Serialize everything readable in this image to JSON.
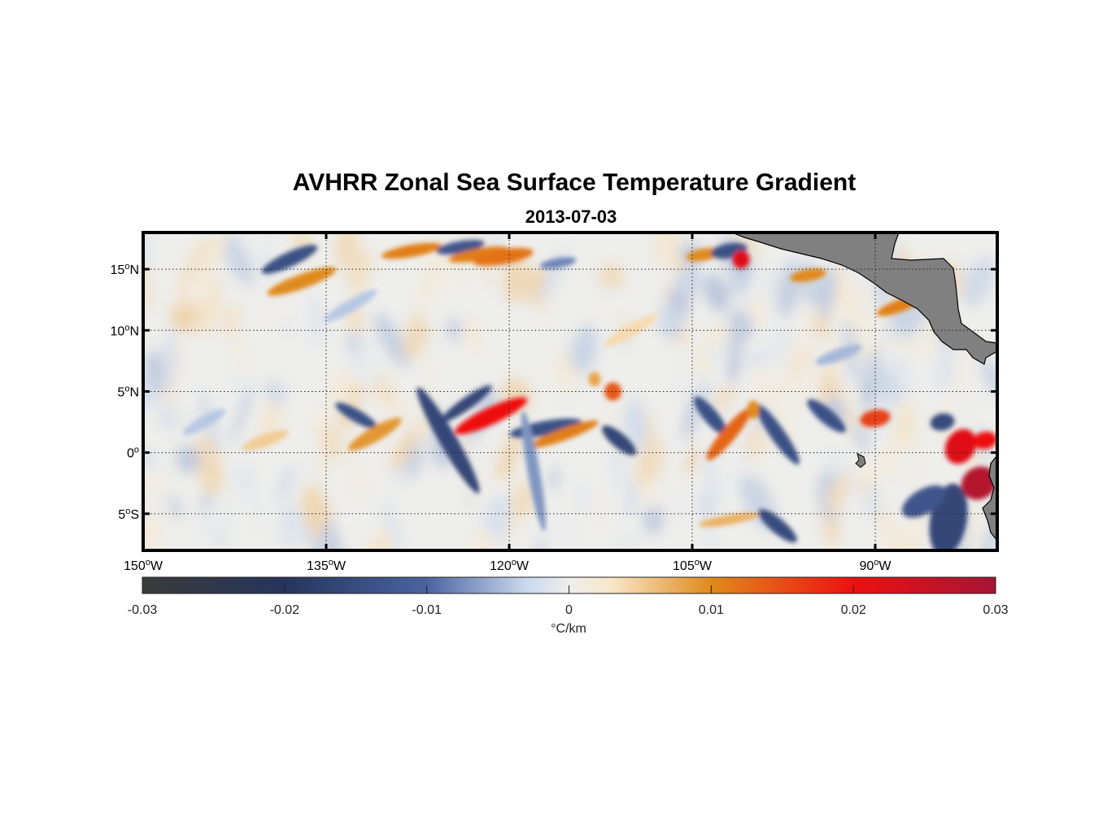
{
  "title": "AVHRR Zonal Sea Surface Temperature Gradient",
  "subtitle": "2013-07-03",
  "map": {
    "extent": {
      "lon_min": -150,
      "lon_max": -80,
      "lat_min": -8,
      "lat_max": 18
    },
    "land_color": "#808080",
    "grid": "dotted",
    "lat_ticks": [
      {
        "value": 15,
        "num": "15",
        "hemi": "N"
      },
      {
        "value": 10,
        "num": "10",
        "hemi": "N"
      },
      {
        "value": 5,
        "num": "5",
        "hemi": "N"
      },
      {
        "value": 0,
        "num": "0",
        "hemi": ""
      },
      {
        "value": -5,
        "num": "5",
        "hemi": "S"
      }
    ],
    "lon_ticks": [
      {
        "value": -150,
        "num": "150",
        "hemi": "W"
      },
      {
        "value": -135,
        "num": "135",
        "hemi": "W"
      },
      {
        "value": -120,
        "num": "120",
        "hemi": "W"
      },
      {
        "value": -105,
        "num": "105",
        "hemi": "W"
      },
      {
        "value": -90,
        "num": "90",
        "hemi": "W"
      }
    ],
    "features": [
      {
        "lon": -138,
        "lat": 15.8,
        "v": -0.014,
        "len": 5,
        "wid": 0.6,
        "rot": 65
      },
      {
        "lon": -137,
        "lat": 14.0,
        "v": 0.01,
        "len": 6,
        "wid": 0.6,
        "rot": 70
      },
      {
        "lon": -128,
        "lat": 16.5,
        "v": 0.011,
        "len": 5,
        "wid": 0.5,
        "rot": 80
      },
      {
        "lon": -124,
        "lat": 16.8,
        "v": -0.013,
        "len": 4,
        "wid": 0.5,
        "rot": 80
      },
      {
        "lon": -122.5,
        "lat": 16.2,
        "v": 0.011,
        "len": 5,
        "wid": 0.5,
        "rot": 80
      },
      {
        "lon": -120.5,
        "lat": 16.0,
        "v": 0.012,
        "len": 5,
        "wid": 0.6,
        "rot": 80
      },
      {
        "lon": -116,
        "lat": 15.5,
        "v": -0.008,
        "len": 3,
        "wid": 0.4,
        "rot": 80
      },
      {
        "lon": -104,
        "lat": 16.2,
        "v": 0.01,
        "len": 3,
        "wid": 0.5,
        "rot": 80
      },
      {
        "lon": -102,
        "lat": 16.5,
        "v": -0.014,
        "len": 3,
        "wid": 0.6,
        "rot": 80
      },
      {
        "lon": -101,
        "lat": 15.8,
        "v": 0.022,
        "len": 1.5,
        "wid": 0.7,
        "rot": 0
      },
      {
        "lon": -95.5,
        "lat": 14.5,
        "v": 0.01,
        "len": 3,
        "wid": 0.5,
        "rot": 80
      },
      {
        "lon": -88,
        "lat": 12.0,
        "v": 0.011,
        "len": 4,
        "wid": 0.5,
        "rot": 70
      },
      {
        "lon": -123.5,
        "lat": 4.0,
        "v": -0.016,
        "len": 5,
        "wid": 0.5,
        "rot": 55
      },
      {
        "lon": -121.5,
        "lat": 3.0,
        "v": 0.02,
        "len": 6.5,
        "wid": 0.7,
        "rot": 65
      },
      {
        "lon": -125,
        "lat": 1.0,
        "v": -0.016,
        "len": 10,
        "wid": 0.7,
        "rot": -30
      },
      {
        "lon": -117,
        "lat": 2.0,
        "v": -0.014,
        "len": 6,
        "wid": 0.6,
        "rot": 80
      },
      {
        "lon": -115.5,
        "lat": 1.5,
        "v": 0.011,
        "len": 6,
        "wid": 0.5,
        "rot": 70
      },
      {
        "lon": -111,
        "lat": 1.0,
        "v": -0.016,
        "len": 3.5,
        "wid": 0.6,
        "rot": -50
      },
      {
        "lon": -132.5,
        "lat": 3.0,
        "v": -0.014,
        "len": 4,
        "wid": 0.5,
        "rot": -60
      },
      {
        "lon": -131,
        "lat": 1.5,
        "v": 0.009,
        "len": 5,
        "wid": 0.6,
        "rot": 60
      },
      {
        "lon": -111.5,
        "lat": 5.0,
        "v": 0.014,
        "len": 1.5,
        "wid": 0.7,
        "rot": 0
      },
      {
        "lon": -113,
        "lat": 6.0,
        "v": 0.008,
        "len": 1.2,
        "wid": 0.5,
        "rot": 0
      },
      {
        "lon": -103.5,
        "lat": 3.0,
        "v": -0.014,
        "len": 4,
        "wid": 0.6,
        "rot": -40
      },
      {
        "lon": -102,
        "lat": 1.5,
        "v": 0.013,
        "len": 5.5,
        "wid": 0.6,
        "rot": 40
      },
      {
        "lon": -98,
        "lat": 1.5,
        "v": -0.014,
        "len": 6,
        "wid": 0.6,
        "rot": -35
      },
      {
        "lon": -94,
        "lat": 3.0,
        "v": -0.014,
        "len": 4,
        "wid": 0.6,
        "rot": -50
      },
      {
        "lon": -100,
        "lat": 3.5,
        "v": 0.01,
        "len": 1.5,
        "wid": 0.5,
        "rot": 0
      },
      {
        "lon": -90,
        "lat": 2.8,
        "v": 0.016,
        "len": 2.5,
        "wid": 0.7,
        "rot": 80
      },
      {
        "lon": -84.5,
        "lat": 2.5,
        "v": -0.015,
        "len": 2,
        "wid": 0.7,
        "rot": 80
      },
      {
        "lon": -83,
        "lat": 0.5,
        "v": 0.022,
        "len": 3,
        "wid": 1.2,
        "rot": 30
      },
      {
        "lon": -81.5,
        "lat": -2.5,
        "v": 0.028,
        "len": 3,
        "wid": 1.3,
        "rot": 60
      },
      {
        "lon": -81,
        "lat": 1.0,
        "v": 0.02,
        "len": 2,
        "wid": 0.7,
        "rot": 80
      },
      {
        "lon": -98,
        "lat": -6.0,
        "v": -0.015,
        "len": 4,
        "wid": 0.6,
        "rot": -50
      },
      {
        "lon": -84,
        "lat": -5.5,
        "v": -0.016,
        "len": 6,
        "wid": 1.5,
        "rot": 10
      },
      {
        "lon": -86,
        "lat": -4.0,
        "v": -0.013,
        "len": 4,
        "wid": 1.0,
        "rot": 60
      },
      {
        "lon": -102,
        "lat": -5.5,
        "v": 0.007,
        "len": 5,
        "wid": 0.4,
        "rot": 80
      },
      {
        "lon": -118,
        "lat": -1.5,
        "v": -0.007,
        "len": 10,
        "wid": 0.5,
        "rot": -10
      },
      {
        "lon": -140,
        "lat": 1.0,
        "v": 0.005,
        "len": 4,
        "wid": 0.5,
        "rot": 70
      },
      {
        "lon": -145,
        "lat": 2.5,
        "v": -0.004,
        "len": 4,
        "wid": 0.5,
        "rot": 60
      },
      {
        "lon": -133,
        "lat": 12.0,
        "v": -0.004,
        "len": 5,
        "wid": 0.5,
        "rot": 60
      },
      {
        "lon": -110,
        "lat": 10.0,
        "v": 0.004,
        "len": 5,
        "wid": 0.5,
        "rot": 60
      },
      {
        "lon": -93,
        "lat": 8.0,
        "v": -0.005,
        "len": 4,
        "wid": 0.5,
        "rot": 70
      }
    ]
  },
  "colorbar": {
    "min": -0.03,
    "max": 0.03,
    "ticks": [
      "-0.03",
      "-0.02",
      "-0.01",
      "0",
      "0.01",
      "0.02",
      "0.03"
    ],
    "tick_values": [
      -0.03,
      -0.02,
      -0.01,
      0,
      0.01,
      0.02,
      0.03
    ],
    "label": "°C/km",
    "stops": [
      {
        "v": -0.03,
        "color": "#3a3a3a"
      },
      {
        "v": -0.02,
        "color": "#25355c"
      },
      {
        "v": -0.01,
        "color": "#4a63a0"
      },
      {
        "v": -0.003,
        "color": "#c9d9ee"
      },
      {
        "v": 0,
        "color": "#eeeeec"
      },
      {
        "v": 0.003,
        "color": "#f8e6c8"
      },
      {
        "v": 0.01,
        "color": "#e08a1a"
      },
      {
        "v": 0.02,
        "color": "#ee1010"
      },
      {
        "v": 0.03,
        "color": "#a51535"
      }
    ]
  }
}
